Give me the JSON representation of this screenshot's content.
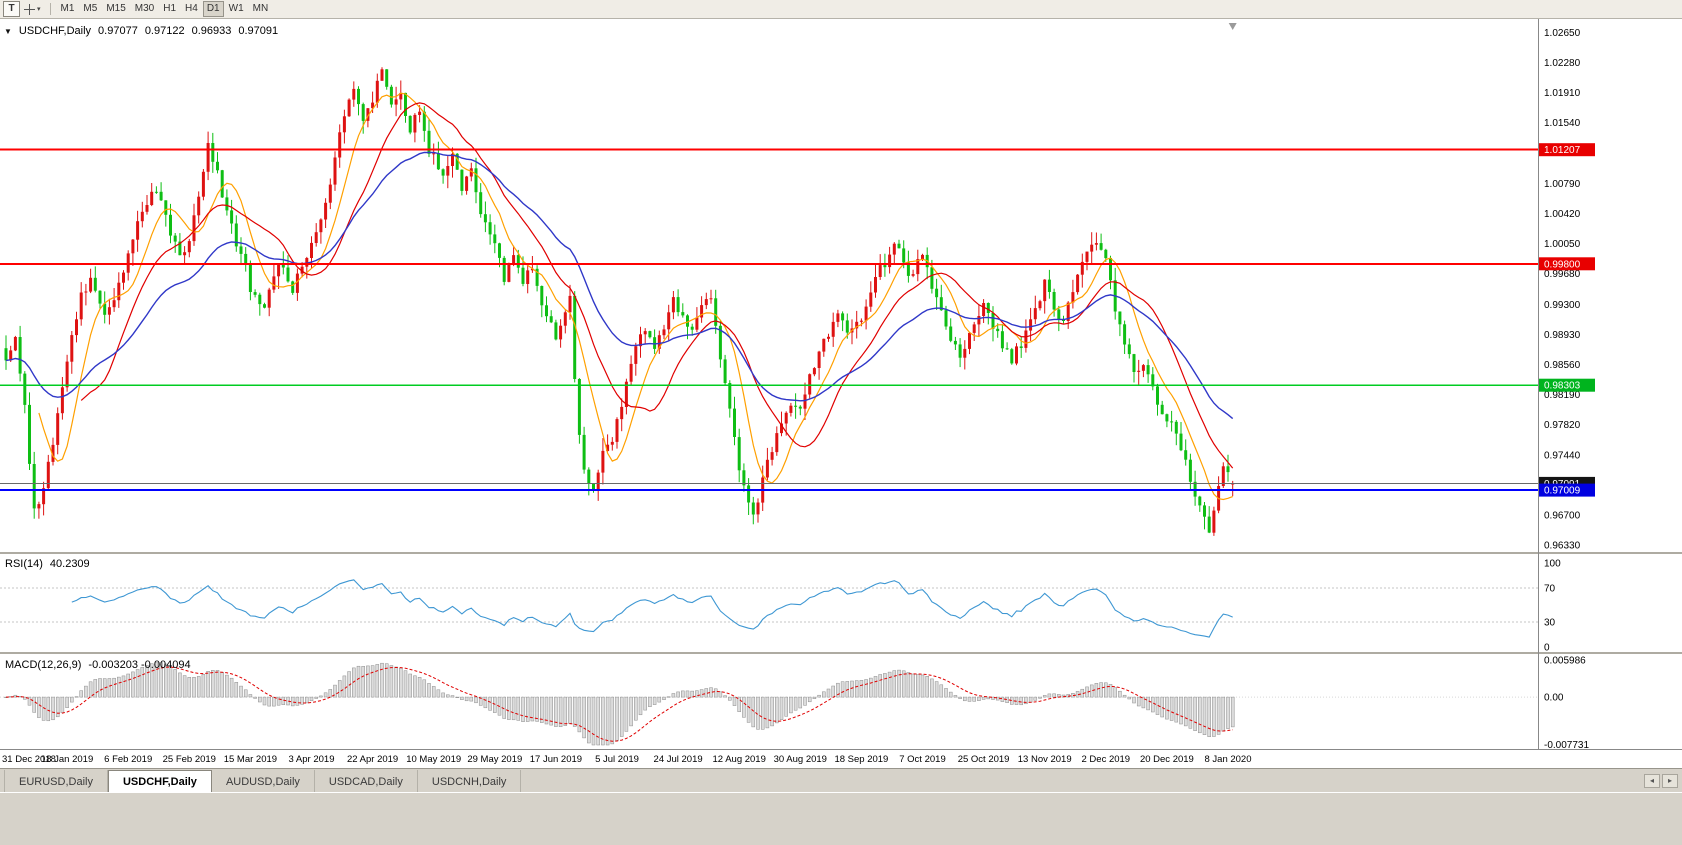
{
  "window": {
    "title": "USDCHF,Daily"
  },
  "toolbar": {
    "text_tool": "T",
    "timeframes": [
      {
        "label": "M1",
        "active": false
      },
      {
        "label": "M5",
        "active": false
      },
      {
        "label": "M15",
        "active": false
      },
      {
        "label": "M30",
        "active": false
      },
      {
        "label": "H1",
        "active": false
      },
      {
        "label": "H4",
        "active": false
      },
      {
        "label": "D1",
        "active": true
      },
      {
        "label": "W1",
        "active": false
      },
      {
        "label": "MN",
        "active": false
      }
    ]
  },
  "chart": {
    "title": "USDCHF,Daily",
    "quote": {
      "open": "0.97077",
      "high": "0.97122",
      "low": "0.96933",
      "close": "0.97091"
    }
  },
  "chart_data": {
    "type": "candlestick",
    "symbol": "USDCHF",
    "period": "Daily",
    "last_bar": {
      "o": 0.97077,
      "h": 0.97122,
      "l": 0.96933,
      "c": 0.97091
    },
    "bar_count": 262,
    "bars_per_label": 13,
    "seed": 20190101,
    "noise": 0.0014,
    "price_scale": {
      "min": 0.9627,
      "max": 1.0277
    },
    "candle_colors": {
      "up": "#DE1212",
      "down": "#0EBE14"
    },
    "price_ticks": [
      {
        "label": "1.02650",
        "value": 1.0265
      },
      {
        "label": "1.02280",
        "value": 1.0228
      },
      {
        "label": "1.01910",
        "value": 1.0191
      },
      {
        "label": "1.01540",
        "value": 1.0154
      },
      {
        "label": "1.00790",
        "value": 1.0079
      },
      {
        "label": "1.00420",
        "value": 1.0042
      },
      {
        "label": "1.00050",
        "value": 1.0005
      },
      {
        "label": "0.99680",
        "value": 0.9968
      },
      {
        "label": "0.99300",
        "value": 0.993
      },
      {
        "label": "0.98930",
        "value": 0.9893
      },
      {
        "label": "0.98560",
        "value": 0.9856
      },
      {
        "label": "0.98190",
        "value": 0.9819
      },
      {
        "label": "0.97820",
        "value": 0.9782
      },
      {
        "label": "0.97440",
        "value": 0.9744
      },
      {
        "label": "0.96700",
        "value": 0.967
      },
      {
        "label": "0.96330",
        "value": 0.9633
      }
    ],
    "price_badges": [
      {
        "label": "1.01207",
        "value": 1.01207,
        "color": "#E80000"
      },
      {
        "label": "0.99800",
        "value": 0.998,
        "color": "#E80000"
      },
      {
        "label": "0.98303",
        "value": 0.98303,
        "color": "#00B41E"
      },
      {
        "label": "0.97091",
        "value": 0.97091,
        "color": "#141414"
      },
      {
        "label": "0.97009",
        "value": 0.97009,
        "color": "#0000E0"
      }
    ],
    "hlines": [
      {
        "label": "resistance-1.01207",
        "value": 1.01207,
        "color": "#FF0000",
        "width": 2
      },
      {
        "label": "resistance-0.99800",
        "value": 0.998,
        "color": "#FF0000",
        "width": 2
      },
      {
        "label": "support-0.98303",
        "value": 0.98303,
        "color": "#00CC22",
        "width": 1.5
      },
      {
        "label": "bid-0.97091",
        "value": 0.97091,
        "color": "#6a6a6a",
        "width": 1
      },
      {
        "label": "support-0.97009",
        "value": 0.97009,
        "color": "#0000FF",
        "width": 2
      }
    ],
    "moving_averages": [
      {
        "period": 8,
        "method": "sma",
        "color": "#FFA000",
        "width": 1.2
      },
      {
        "period": 17,
        "method": "sma",
        "color": "#E00000",
        "width": 1.2
      },
      {
        "period": 34,
        "method": "ema",
        "color": "#3038C8",
        "width": 1.4
      }
    ],
    "x_labels": [
      "31 Dec 2018",
      "18 Jan 2019",
      "6 Feb 2019",
      "25 Feb 2019",
      "15 Mar 2019",
      "3 Apr 2019",
      "22 Apr 2019",
      "10 May 2019",
      "29 May 2019",
      "17 Jun 2019",
      "5 Jul 2019",
      "24 Jul 2019",
      "12 Aug 2019",
      "30 Aug 2019",
      "18 Sep 2019",
      "7 Oct 2019",
      "25 Oct 2019",
      "13 Nov 2019",
      "2 Dec 2019",
      "20 Dec 2019",
      "8 Jan 2020"
    ],
    "close_waypoints": [
      [
        0,
        0.9855
      ],
      [
        2,
        0.9895
      ],
      [
        4,
        0.98
      ],
      [
        6,
        0.9672
      ],
      [
        8,
        0.9705
      ],
      [
        10,
        0.9762
      ],
      [
        13,
        0.986
      ],
      [
        16,
        0.9942
      ],
      [
        18,
        0.9956
      ],
      [
        21,
        0.9915
      ],
      [
        24,
        0.995
      ],
      [
        26,
        0.9992
      ],
      [
        29,
        1.0046
      ],
      [
        32,
        1.0072
      ],
      [
        34,
        1.0035
      ],
      [
        37,
        0.9992
      ],
      [
        39,
        1.0006
      ],
      [
        41,
        1.0062
      ],
      [
        43,
        1.0124
      ],
      [
        45,
        1.0092
      ],
      [
        47,
        1.004
      ],
      [
        50,
        0.9992
      ],
      [
        52,
        0.9952
      ],
      [
        55,
        0.9926
      ],
      [
        58,
        0.9982
      ],
      [
        61,
        0.9946
      ],
      [
        64,
        0.9992
      ],
      [
        66,
        1.0012
      ],
      [
        68,
        1.0052
      ],
      [
        70,
        1.0112
      ],
      [
        72,
        1.0162
      ],
      [
        74,
        1.0196
      ],
      [
        76,
        1.016
      ],
      [
        78,
        1.0182
      ],
      [
        80,
        1.0216
      ],
      [
        82,
        1.0172
      ],
      [
        84,
        1.0192
      ],
      [
        86,
        1.0146
      ],
      [
        88,
        1.0172
      ],
      [
        90,
        1.0122
      ],
      [
        93,
        1.0086
      ],
      [
        95,
        1.0112
      ],
      [
        97,
        1.0072
      ],
      [
        99,
        1.0092
      ],
      [
        101,
        1.0042
      ],
      [
        104,
        1.0006
      ],
      [
        106,
        0.9962
      ],
      [
        108,
        0.9992
      ],
      [
        110,
        0.9956
      ],
      [
        112,
        0.9976
      ],
      [
        114,
        0.9932
      ],
      [
        117,
        0.9892
      ],
      [
        119,
        0.9926
      ],
      [
        120,
        0.994
      ],
      [
        121,
        0.9842
      ],
      [
        122,
        0.9772
      ],
      [
        123,
        0.9726
      ],
      [
        125,
        0.97
      ],
      [
        127,
        0.9746
      ],
      [
        129,
        0.9766
      ],
      [
        130,
        0.9786
      ],
      [
        132,
        0.9832
      ],
      [
        134,
        0.9872
      ],
      [
        136,
        0.9902
      ],
      [
        138,
        0.9876
      ],
      [
        140,
        0.9906
      ],
      [
        142,
        0.9932
      ],
      [
        144,
        0.9918
      ],
      [
        146,
        0.9896
      ],
      [
        148,
        0.9926
      ],
      [
        150,
        0.994
      ],
      [
        152,
        0.9868
      ],
      [
        154,
        0.9798
      ],
      [
        156,
        0.9722
      ],
      [
        158,
        0.9682
      ],
      [
        159,
        0.9666
      ],
      [
        161,
        0.9716
      ],
      [
        163,
        0.9752
      ],
      [
        165,
        0.9786
      ],
      [
        167,
        0.9806
      ],
      [
        169,
        0.98
      ],
      [
        171,
        0.9842
      ],
      [
        173,
        0.9872
      ],
      [
        175,
        0.9892
      ],
      [
        177,
        0.9916
      ],
      [
        179,
        0.9892
      ],
      [
        182,
        0.9912
      ],
      [
        184,
        0.9942
      ],
      [
        186,
        0.9972
      ],
      [
        188,
        0.9992
      ],
      [
        190,
        1.0006
      ],
      [
        192,
        0.9966
      ],
      [
        195,
        0.9988
      ],
      [
        197,
        0.9952
      ],
      [
        199,
        0.9916
      ],
      [
        201,
        0.9886
      ],
      [
        203,
        0.9866
      ],
      [
        205,
        0.9896
      ],
      [
        208,
        0.993
      ],
      [
        210,
        0.9906
      ],
      [
        212,
        0.9876
      ],
      [
        214,
        0.9862
      ],
      [
        216,
        0.9882
      ],
      [
        218,
        0.9906
      ],
      [
        221,
        0.9956
      ],
      [
        223,
        0.9926
      ],
      [
        225,
        0.9906
      ],
      [
        227,
        0.9952
      ],
      [
        229,
        0.9986
      ],
      [
        231,
        1.0006
      ],
      [
        233,
        0.9996
      ],
      [
        234,
        0.9986
      ],
      [
        236,
        0.9922
      ],
      [
        238,
        0.9882
      ],
      [
        240,
        0.9846
      ],
      [
        242,
        0.9856
      ],
      [
        244,
        0.9826
      ],
      [
        246,
        0.9796
      ],
      [
        248,
        0.9786
      ],
      [
        250,
        0.9756
      ],
      [
        252,
        0.9716
      ],
      [
        254,
        0.9678
      ],
      [
        256,
        0.965
      ],
      [
        257,
        0.9682
      ],
      [
        258,
        0.9712
      ],
      [
        259,
        0.9732
      ],
      [
        260,
        0.9716
      ],
      [
        261,
        0.97091
      ]
    ],
    "rsi": {
      "label": "RSI(14)",
      "value_text": "40.2309",
      "period": 14,
      "color": "#3E97D3",
      "levels": [
        70,
        30
      ],
      "ticks": [
        {
          "label": "100",
          "value": 100
        },
        {
          "label": "70",
          "value": 70
        },
        {
          "label": "30",
          "value": 30
        },
        {
          "label": "0",
          "value": 0
        }
      ]
    },
    "macd": {
      "label": "MACD(12,26,9)",
      "value_text": "-0.003203 -0.004094",
      "fast": 12,
      "slow": 26,
      "signal": 9,
      "range": [
        -0.007731,
        0.005986
      ],
      "hist_fill": "#DCDCDC",
      "hist_stroke": "#8C8C8C",
      "signal_color": "#E00000",
      "ticks": [
        {
          "label": "0.005986",
          "value": 0.005986
        },
        {
          "label": "0.00",
          "value": 0
        },
        {
          "label": "-0.007731",
          "value": -0.007731
        }
      ]
    }
  },
  "tabs": {
    "items": [
      {
        "label": "EURUSD,Daily",
        "active": false
      },
      {
        "label": "USDCHF,Daily",
        "active": true
      },
      {
        "label": "AUDUSD,Daily",
        "active": false
      },
      {
        "label": "USDCAD,Daily",
        "active": false
      },
      {
        "label": "USDCNH,Daily",
        "active": false
      }
    ]
  }
}
